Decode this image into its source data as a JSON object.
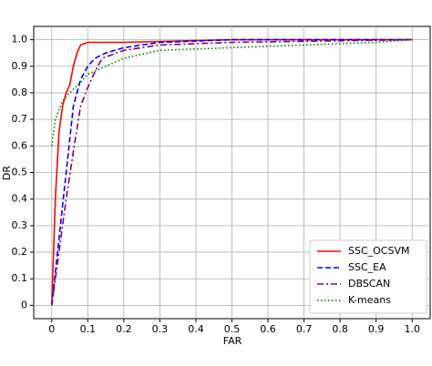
{
  "chart_data": {
    "type": "line",
    "x_label": "FAR",
    "y_label": "DR",
    "xlim": [
      -0.05,
      1.05
    ],
    "ylim": [
      -0.05,
      1.05
    ],
    "xticks": [
      0,
      0.1,
      0.2,
      0.3,
      0.4,
      0.5,
      0.6,
      0.7,
      0.8,
      0.9,
      {
        "value": 1,
        "label": "1.0"
      }
    ],
    "yticks": [
      0,
      0.1,
      0.2,
      0.3,
      0.4,
      0.5,
      0.6,
      0.7,
      0.8,
      0.9,
      {
        "value": 1,
        "label": "1.0"
      }
    ],
    "grid": true,
    "legend": "lower right",
    "series": [
      {
        "name": "SSC_OCSVM",
        "color": "#ff0000",
        "style": "solid",
        "x": [
          0,
          0.01,
          0.02,
          0.03,
          0.04,
          0.05,
          0.06,
          0.07,
          0.08,
          0.1,
          0.2,
          0.5,
          1
        ],
        "values": [
          0,
          0.4,
          0.65,
          0.75,
          0.8,
          0.83,
          0.9,
          0.95,
          0.98,
          0.99,
          0.99,
          1,
          1
        ]
      },
      {
        "name": "SSC_EA",
        "color": "#0000ff",
        "style": "dashed",
        "x": [
          0,
          0.02,
          0.04,
          0.06,
          0.08,
          0.1,
          0.12,
          0.15,
          0.2,
          0.3,
          0.5,
          1
        ],
        "values": [
          0,
          0.25,
          0.5,
          0.75,
          0.85,
          0.9,
          0.93,
          0.95,
          0.97,
          0.99,
          1,
          1
        ]
      },
      {
        "name": "DBSCAN",
        "color": "#800080",
        "style": "dashdot",
        "x": [
          0,
          0.02,
          0.04,
          0.06,
          0.08,
          0.1,
          0.12,
          0.14,
          0.2,
          0.3,
          0.5,
          1
        ],
        "values": [
          0,
          0.2,
          0.4,
          0.58,
          0.75,
          0.82,
          0.88,
          0.93,
          0.96,
          0.98,
          0.99,
          1
        ]
      },
      {
        "name": "K-means",
        "color": "#008000",
        "style": "dotted",
        "x": [
          0,
          0.01,
          0.03,
          0.05,
          0.08,
          0.1,
          0.15,
          0.2,
          0.3,
          0.5,
          0.7,
          0.9,
          1
        ],
        "values": [
          0.6,
          0.7,
          0.77,
          0.8,
          0.84,
          0.87,
          0.9,
          0.93,
          0.96,
          0.97,
          0.98,
          0.99,
          1
        ]
      }
    ]
  }
}
